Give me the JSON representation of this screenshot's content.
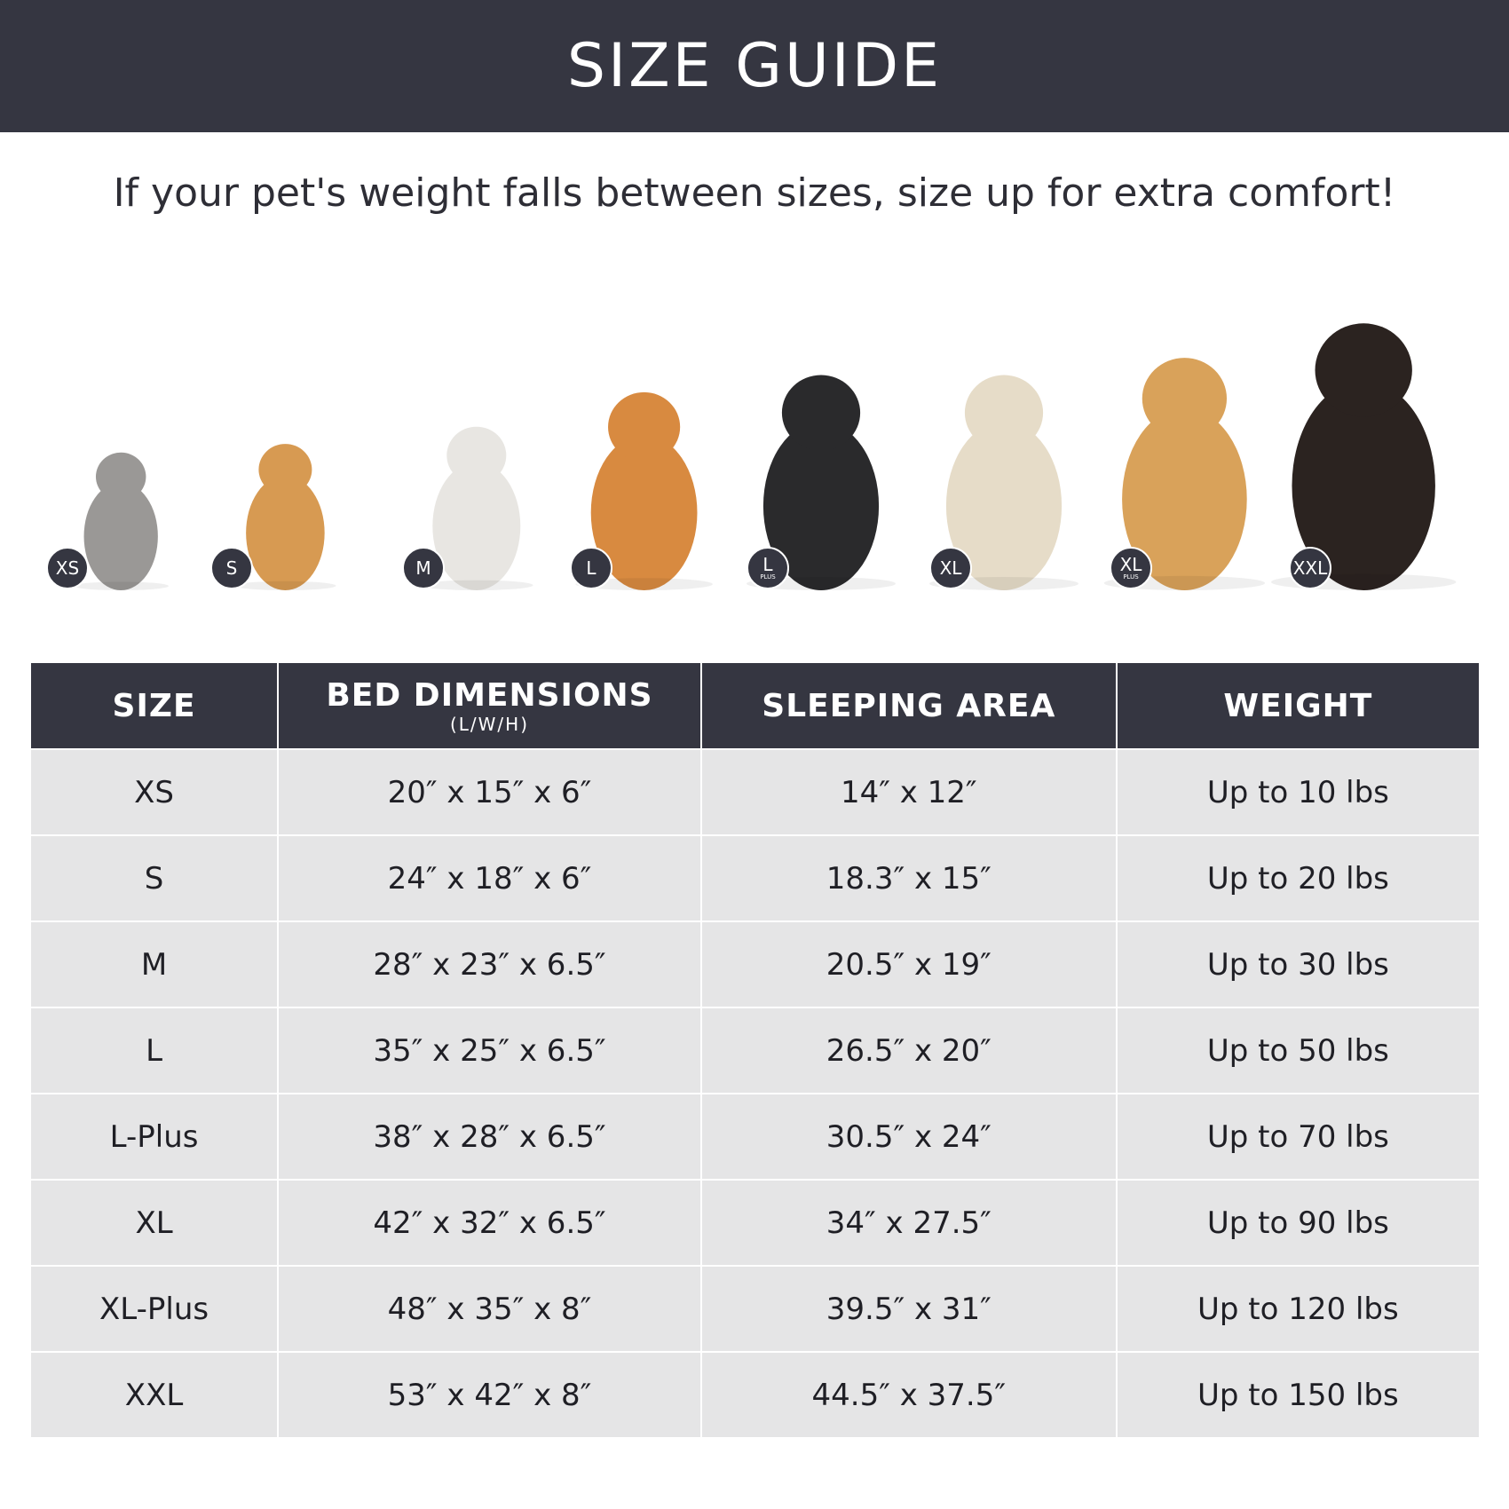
{
  "header": {
    "title": "SIZE GUIDE"
  },
  "subtitle": "If your pet's weight falls between sizes, size up for extra comfort!",
  "pets": [
    {
      "badge": "XS",
      "plus": "",
      "animal": "gray cat",
      "color": "#9a9896"
    },
    {
      "badge": "S",
      "plus": "",
      "animal": "pomeranian",
      "color": "#d79a52"
    },
    {
      "badge": "M",
      "plus": "",
      "animal": "french bulldog",
      "color": "#e8e6e2"
    },
    {
      "badge": "L",
      "plus": "",
      "animal": "shiba inu",
      "color": "#d88a40"
    },
    {
      "badge": "L",
      "plus": "PLUS",
      "animal": "border collie",
      "color": "#2a2a2c"
    },
    {
      "badge": "XL",
      "plus": "",
      "animal": "labrador",
      "color": "#e6dcc8"
    },
    {
      "badge": "XL",
      "plus": "PLUS",
      "animal": "golden retriever",
      "color": "#d9a25a"
    },
    {
      "badge": "XXL",
      "plus": "",
      "animal": "doberman",
      "color": "#2b2320"
    }
  ],
  "table": {
    "headers": [
      {
        "label": "SIZE",
        "unit": ""
      },
      {
        "label": "BED DIMENSIONS",
        "unit": "(L/W/H)"
      },
      {
        "label": "SLEEPING AREA",
        "unit": ""
      },
      {
        "label": "WEIGHT",
        "unit": ""
      }
    ],
    "rows": [
      [
        "XS",
        "20″ x 15″ x 6″",
        "14″ x 12″",
        "Up to 10 lbs"
      ],
      [
        "S",
        "24″ x 18″ x 6″",
        "18.3″ x 15″",
        "Up to 20 lbs"
      ],
      [
        "M",
        "28″ x 23″ x 6.5″",
        "20.5″ x 19″",
        "Up to 30 lbs"
      ],
      [
        "L",
        "35″ x 25″ x 6.5″",
        "26.5″ x 20″",
        "Up to 50 lbs"
      ],
      [
        "L-Plus",
        "38″ x 28″ x 6.5″",
        "30.5″ x 24″",
        "Up to 70 lbs"
      ],
      [
        "XL",
        "42″ x 32″ x 6.5″",
        "34″ x 27.5″",
        "Up to 90 lbs"
      ],
      [
        "XL-Plus",
        "48″ x 35″ x 8″",
        "39.5″ x 31″",
        "Up to 120 lbs"
      ],
      [
        "XXL",
        "53″ x 42″ x 8″",
        "44.5″ x 37.5″",
        "Up to 150 lbs"
      ]
    ]
  },
  "colors": {
    "dark": "#353641",
    "row": "#e5e5e6"
  }
}
